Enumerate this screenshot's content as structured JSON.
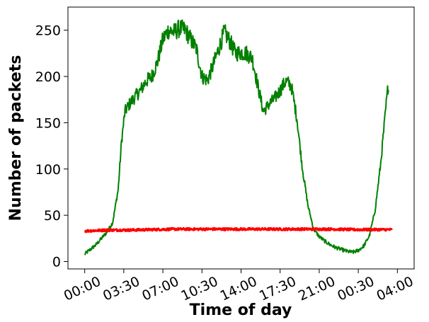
{
  "chart_data": {
    "type": "line",
    "title": "",
    "xlabel": "Time of day",
    "ylabel": "Number of packets",
    "x_tick_labels": [
      "00:00",
      "03:30",
      "07:00",
      "10:30",
      "14:00",
      "17:30",
      "21:00",
      "00:30",
      "04:00"
    ],
    "x_tick_hours": [
      0,
      3.5,
      7,
      10.5,
      14,
      17.5,
      21,
      24.5,
      28
    ],
    "xlim_hours": [
      -1.5,
      29.5
    ],
    "y_ticks": [
      0,
      50,
      100,
      150,
      200,
      250
    ],
    "ylim": [
      -8,
      275
    ],
    "grid": false,
    "legend": "none",
    "series": [
      {
        "color": "#008000",
        "x_hours": [
          0,
          0.5,
          1,
          1.5,
          2,
          2.5,
          3,
          3.3,
          3.6,
          4,
          4.5,
          5,
          5.5,
          6,
          6.5,
          7,
          7.5,
          8,
          8.5,
          9,
          9.5,
          10,
          10.5,
          11,
          11.5,
          12,
          12.5,
          13,
          13.5,
          14,
          14.5,
          15,
          15.5,
          16,
          16.5,
          17,
          17.5,
          18,
          18.5,
          19,
          19.5,
          20,
          20.5,
          21,
          21.5,
          22,
          22.5,
          23,
          23.5,
          24,
          24.5,
          25,
          25.5,
          26,
          26.5,
          27,
          27.2
        ],
        "values": [
          8,
          13,
          18,
          25,
          32,
          42,
          78,
          130,
          162,
          170,
          178,
          185,
          195,
          200,
          215,
          240,
          250,
          248,
          252,
          250,
          240,
          230,
          200,
          196,
          212,
          230,
          248,
          238,
          225,
          226,
          225,
          220,
          190,
          162,
          170,
          176,
          185,
          195,
          190,
          155,
          100,
          60,
          35,
          27,
          22,
          18,
          15,
          13,
          11,
          10,
          12,
          17,
          28,
          55,
          105,
          170,
          193
        ]
      },
      {
        "color": "#ff0000",
        "x_hours": [
          0,
          2,
          4,
          6,
          8,
          10,
          12,
          14,
          16,
          18,
          20,
          22,
          24,
          26,
          27.5
        ],
        "values": [
          33,
          34,
          34,
          34.5,
          35,
          35,
          35,
          35,
          35,
          35,
          35,
          35,
          34.5,
          34.5,
          34.5
        ]
      }
    ]
  }
}
